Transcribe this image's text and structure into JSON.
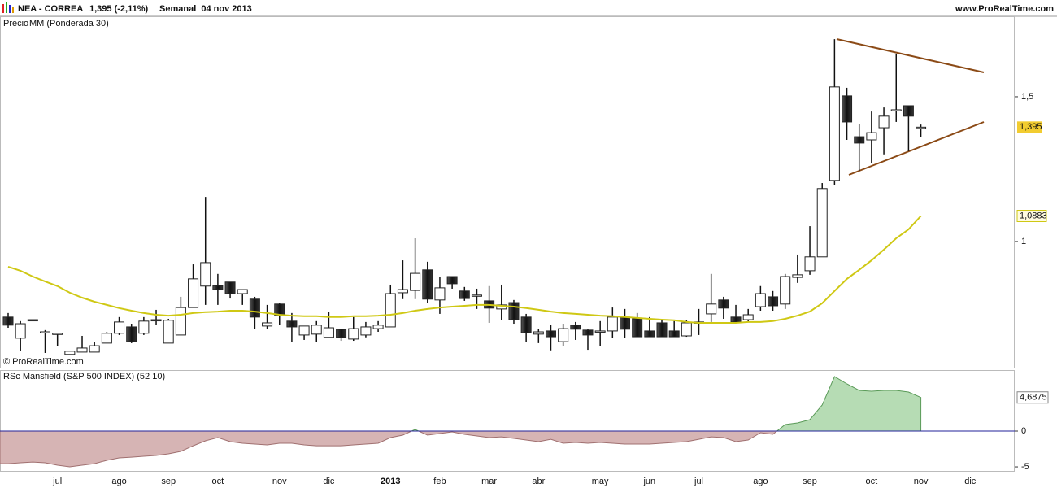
{
  "chart_data": [
    {
      "type": "candlestick",
      "title": "NEA - CORREA",
      "last_quote": "1,395 (-2,11%)",
      "period": "Semanal  04 nov 2013",
      "source": "www.ProRealTime.com",
      "copyright": "© ProRealTime.com",
      "ylim": [
        0.57,
        1.778
      ],
      "yticks": [
        {
          "value": 1.5,
          "label": "1,5"
        },
        1
      ],
      "series": [
        {
          "name": "Precio",
          "color": "#222222",
          "open": [
            0.739,
            0.666,
            0.73,
            0.688,
            0.683,
            0.61,
            0.618,
            0.618,
            0.649,
            0.683,
            0.705,
            0.683,
            0.73,
            0.649,
            0.677,
            0.772,
            0.846,
            0.848,
            0.86,
            0.82,
            0.801,
            0.708,
            0.784,
            0.725,
            0.677,
            0.68,
            0.669,
            0.697,
            0.663,
            0.677,
            0.699,
            0.705,
            0.823,
            0.831,
            0.902,
            0.798,
            0.879,
            0.829,
            0.815,
            0.795,
            0.767,
            0.789,
            0.739,
            0.68,
            0.691,
            0.654,
            0.711,
            0.694,
            0.691,
            0.691,
            0.739,
            0.733,
            0.691,
            0.719,
            0.691,
            0.674,
            0.722,
            0.75,
            0.798,
            0.739,
            0.73,
            0.775,
            0.809,
            0.784,
            0.876,
            0.899,
            0.947,
            1.211,
            1.503,
            1.362,
            1.351,
            1.393,
            1.455,
            1.469,
            1.395,
            null,
            null,
            null,
            null
          ],
          "high": [
            0.753,
            0.725,
            0.73,
            0.694,
            0.683,
            0.621,
            0.674,
            0.654,
            0.688,
            0.739,
            0.716,
            0.739,
            0.764,
            0.733,
            0.809,
            0.921,
            1.154,
            0.888,
            0.86,
            0.834,
            0.809,
            0.781,
            0.789,
            0.753,
            0.708,
            0.725,
            0.758,
            0.697,
            0.739,
            0.722,
            0.725,
            0.851,
            0.935,
            1.011,
            0.93,
            0.879,
            0.879,
            0.843,
            0.837,
            0.846,
            0.851,
            0.798,
            0.75,
            0.697,
            0.711,
            0.716,
            0.722,
            0.697,
            0.725,
            0.772,
            0.767,
            0.753,
            0.739,
            0.73,
            0.725,
            0.73,
            0.767,
            0.888,
            0.809,
            0.781,
            0.767,
            0.846,
            0.829,
            0.888,
            0.955,
            1.053,
            1.202,
            1.699,
            1.531,
            1.407,
            1.449,
            1.463,
            1.649,
            1.469,
            1.404,
            null,
            null,
            null,
            null
          ],
          "low": [
            0.702,
            0.621,
            0.73,
            0.615,
            0.64,
            0.607,
            0.618,
            0.618,
            0.649,
            0.677,
            0.649,
            0.677,
            0.711,
            0.649,
            0.677,
            0.772,
            0.781,
            0.781,
            0.803,
            0.781,
            0.697,
            0.697,
            0.711,
            0.654,
            0.66,
            0.654,
            0.666,
            0.657,
            0.657,
            0.669,
            0.688,
            0.705,
            0.801,
            0.801,
            0.789,
            0.75,
            0.837,
            0.795,
            0.767,
            0.719,
            0.73,
            0.716,
            0.654,
            0.649,
            0.624,
            0.638,
            0.66,
            0.626,
            0.64,
            0.666,
            0.666,
            0.671,
            0.671,
            0.671,
            0.671,
            0.671,
            0.677,
            0.722,
            0.733,
            0.722,
            0.722,
            0.761,
            0.761,
            0.767,
            0.857,
            0.885,
            0.947,
            1.194,
            1.351,
            1.244,
            1.272,
            1.301,
            1.413,
            1.312,
            1.362,
            null,
            null,
            null,
            null
          ],
          "close": [
            0.711,
            0.716,
            0.73,
            0.688,
            0.683,
            0.621,
            0.632,
            0.64,
            0.683,
            0.722,
            0.654,
            0.725,
            0.73,
            0.728,
            0.772,
            0.871,
            0.927,
            0.834,
            0.82,
            0.834,
            0.739,
            0.719,
            0.744,
            0.705,
            0.708,
            0.711,
            0.702,
            0.669,
            0.699,
            0.705,
            0.711,
            0.82,
            0.834,
            0.89,
            0.801,
            0.84,
            0.854,
            0.803,
            0.815,
            0.77,
            0.781,
            0.73,
            0.685,
            0.688,
            0.671,
            0.699,
            0.697,
            0.677,
            0.691,
            0.739,
            0.697,
            0.671,
            0.671,
            0.671,
            0.671,
            0.719,
            0.722,
            0.784,
            0.77,
            0.722,
            0.747,
            0.82,
            0.778,
            0.879,
            0.885,
            0.947,
            1.183,
            1.534,
            1.413,
            1.34,
            1.376,
            1.433,
            1.455,
            1.433,
            1.395,
            null,
            null,
            null,
            null
          ],
          "value_labels": [
            null,
            null,
            null,
            null,
            null,
            null,
            null,
            null,
            null,
            null,
            null,
            null,
            null,
            null,
            null,
            null,
            null,
            null,
            null,
            null,
            null,
            null,
            null,
            null,
            null,
            null,
            null,
            null,
            null,
            null,
            null,
            null,
            null,
            null,
            null,
            null,
            null,
            null,
            null,
            null,
            null,
            null,
            null,
            null,
            null,
            null,
            null,
            null,
            null,
            null,
            null,
            null,
            null,
            null,
            null,
            null,
            null,
            null,
            null,
            null,
            null,
            null,
            null,
            null,
            null,
            null,
            null,
            null,
            null,
            null,
            null,
            null,
            null,
            null,
            "1,395",
            null,
            null,
            null,
            null
          ]
        },
        {
          "name": "MM (Ponderada 30)",
          "type": "line",
          "color": "#cfc814",
          "values": [
            0.913,
            0.899,
            0.879,
            0.862,
            0.846,
            0.823,
            0.806,
            0.792,
            0.781,
            0.77,
            0.761,
            0.753,
            0.747,
            0.744,
            0.747,
            0.753,
            0.756,
            0.758,
            0.761,
            0.761,
            0.758,
            0.753,
            0.747,
            0.744,
            0.742,
            0.742,
            0.739,
            0.739,
            0.742,
            0.742,
            0.744,
            0.747,
            0.753,
            0.761,
            0.767,
            0.772,
            0.775,
            0.778,
            0.781,
            0.781,
            0.778,
            0.775,
            0.77,
            0.764,
            0.758,
            0.753,
            0.75,
            0.747,
            0.744,
            0.742,
            0.739,
            0.736,
            0.733,
            0.73,
            0.728,
            0.722,
            0.719,
            0.719,
            0.719,
            0.719,
            0.722,
            0.722,
            0.725,
            0.733,
            0.744,
            0.758,
            0.787,
            0.829,
            0.871,
            0.902,
            0.935,
            0.972,
            1.011,
            1.042,
            1.0883,
            null,
            null,
            null,
            null
          ],
          "value_labels": [
            null,
            null,
            null,
            null,
            null,
            null,
            null,
            null,
            null,
            null,
            null,
            null,
            null,
            null,
            null,
            null,
            null,
            null,
            null,
            null,
            null,
            null,
            null,
            null,
            null,
            null,
            null,
            null,
            null,
            null,
            null,
            null,
            null,
            null,
            null,
            null,
            null,
            null,
            null,
            null,
            null,
            null,
            null,
            null,
            null,
            null,
            null,
            null,
            null,
            null,
            null,
            null,
            null,
            null,
            null,
            null,
            null,
            null,
            null,
            null,
            null,
            null,
            null,
            null,
            null,
            null,
            null,
            null,
            null,
            null,
            null,
            null,
            null,
            null,
            "1,0883",
            null,
            null,
            null,
            null
          ]
        }
      ]
    },
    {
      "type": "area",
      "title": "RSc Mansfield (S&P 500 INDEX) (52 10)",
      "categories": [
        null,
        null,
        null,
        null,
        "jul",
        null,
        null,
        null,
        null,
        "ago",
        null,
        null,
        null,
        "sep",
        null,
        null,
        null,
        "oct",
        null,
        null,
        null,
        null,
        "nov",
        null,
        null,
        null,
        "dic",
        null,
        null,
        null,
        null,
        "2013",
        null,
        null,
        null,
        "feb",
        null,
        null,
        null,
        "mar",
        null,
        null,
        null,
        "abr",
        null,
        null,
        null,
        null,
        "may",
        null,
        null,
        null,
        "jun",
        null,
        null,
        null,
        "jul",
        null,
        null,
        null,
        null,
        "ago",
        null,
        null,
        null,
        "sep",
        null,
        null,
        null,
        null,
        "oct",
        null,
        null,
        null,
        "nov",
        null,
        null,
        null,
        "dic"
      ],
      "ylim": [
        -5.45,
        8.52
      ],
      "yticks": [
        0,
        -5
      ],
      "series": [
        {
          "name": "RSc Mansfield",
          "positive_color": "#b6dcb4",
          "negative_color": "#d6b4b4",
          "values": [
            -4.55,
            -4.43,
            -4.32,
            -4.43,
            -4.77,
            -5.0,
            -4.77,
            -4.55,
            -4.09,
            -3.75,
            -3.64,
            -3.52,
            -3.41,
            -3.18,
            -2.84,
            -2.05,
            -1.36,
            -0.91,
            -1.48,
            -1.7,
            -1.82,
            -1.93,
            -1.7,
            -1.7,
            -1.93,
            -2.05,
            -2.05,
            -2.05,
            -1.93,
            -1.82,
            -1.7,
            -0.91,
            -0.57,
            0.23,
            -0.57,
            -0.34,
            -0.11,
            -0.45,
            -0.68,
            -0.91,
            -0.8,
            -1.02,
            -1.25,
            -1.48,
            -1.14,
            -1.7,
            -1.59,
            -1.7,
            -1.59,
            -1.7,
            -1.82,
            -1.82,
            -1.82,
            -1.7,
            -1.59,
            -1.48,
            -1.14,
            -0.8,
            -0.91,
            -1.48,
            -1.25,
            -0.23,
            -0.45,
            0.91,
            1.14,
            1.59,
            3.64,
            7.61,
            6.59,
            5.68,
            5.57,
            5.68,
            5.68,
            5.45,
            4.6875,
            null,
            null,
            null,
            null
          ],
          "value_labels": [
            null,
            null,
            null,
            null,
            null,
            null,
            null,
            null,
            null,
            null,
            null,
            null,
            null,
            null,
            null,
            null,
            null,
            null,
            null,
            null,
            null,
            null,
            null,
            null,
            null,
            null,
            null,
            null,
            null,
            null,
            null,
            null,
            null,
            null,
            null,
            null,
            null,
            null,
            null,
            null,
            null,
            null,
            null,
            null,
            null,
            null,
            null,
            null,
            null,
            null,
            null,
            null,
            null,
            null,
            null,
            null,
            null,
            null,
            null,
            null,
            null,
            null,
            null,
            null,
            null,
            null,
            null,
            null,
            null,
            null,
            null,
            null,
            null,
            null,
            "4,6875",
            null,
            null,
            null,
            null
          ]
        }
      ]
    }
  ]
}
